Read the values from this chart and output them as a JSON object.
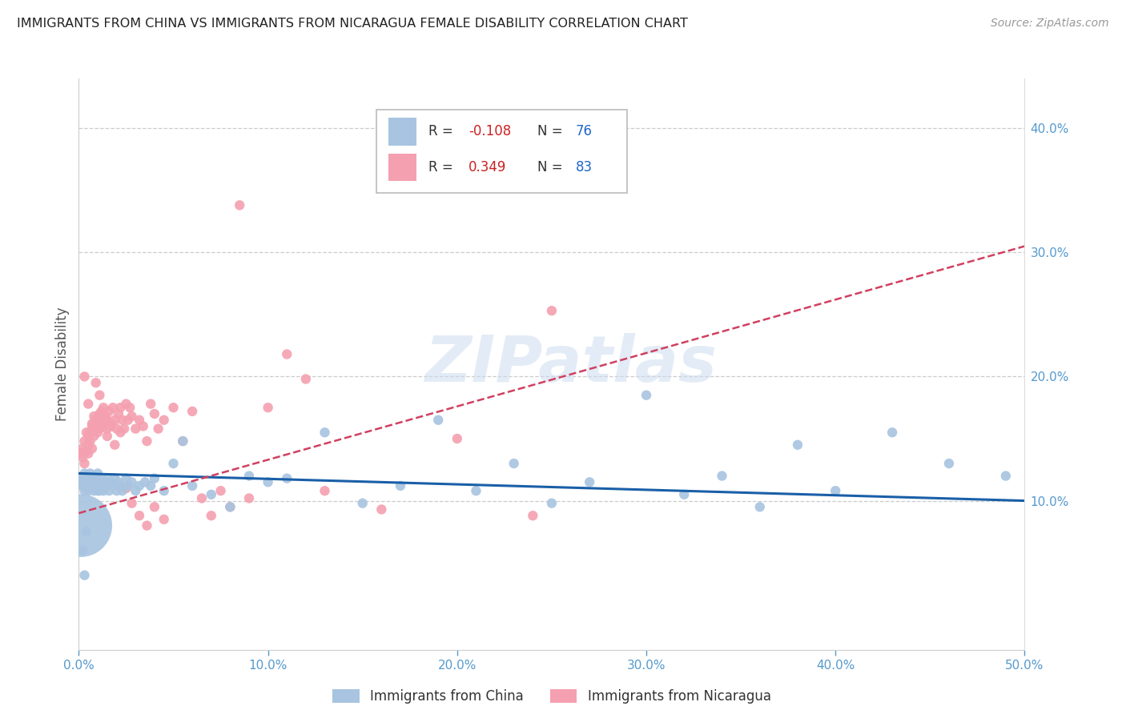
{
  "title": "IMMIGRANTS FROM CHINA VS IMMIGRANTS FROM NICARAGUA FEMALE DISABILITY CORRELATION CHART",
  "source": "Source: ZipAtlas.com",
  "ylabel": "Female Disability",
  "xlim": [
    0.0,
    0.5
  ],
  "ylim": [
    -0.02,
    0.44
  ],
  "plot_ylim": [
    -0.02,
    0.44
  ],
  "ytick_values": [
    0.1,
    0.2,
    0.3,
    0.4
  ],
  "xtick_values": [
    0.0,
    0.1,
    0.2,
    0.3,
    0.4,
    0.5
  ],
  "china_color": "#a8c4e0",
  "nicaragua_color": "#f4a0b0",
  "china_line_color": "#1a5fa8",
  "nicaragua_line_color": "#d04060",
  "china_R": -0.108,
  "china_N": 76,
  "nicaragua_R": 0.349,
  "nicaragua_N": 83,
  "watermark": "ZIPatlas",
  "china_line_x0": 0.0,
  "china_line_x1": 0.5,
  "china_line_y0": 0.122,
  "china_line_y1": 0.1,
  "nicaragua_line_x0": 0.0,
  "nicaragua_line_x1": 0.5,
  "nicaragua_line_y0": 0.09,
  "nicaragua_line_y1": 0.305,
  "china_x": [
    0.001,
    0.002,
    0.002,
    0.003,
    0.003,
    0.004,
    0.004,
    0.005,
    0.005,
    0.005,
    0.006,
    0.006,
    0.007,
    0.007,
    0.008,
    0.008,
    0.009,
    0.009,
    0.01,
    0.01,
    0.01,
    0.011,
    0.011,
    0.012,
    0.012,
    0.013,
    0.013,
    0.014,
    0.015,
    0.015,
    0.016,
    0.017,
    0.018,
    0.019,
    0.02,
    0.021,
    0.022,
    0.023,
    0.025,
    0.026,
    0.028,
    0.03,
    0.032,
    0.035,
    0.038,
    0.04,
    0.045,
    0.05,
    0.055,
    0.06,
    0.07,
    0.08,
    0.09,
    0.1,
    0.11,
    0.13,
    0.15,
    0.17,
    0.19,
    0.21,
    0.23,
    0.25,
    0.27,
    0.3,
    0.32,
    0.34,
    0.36,
    0.38,
    0.4,
    0.43,
    0.46,
    0.49,
    0.002,
    0.003,
    0.004,
    0.001
  ],
  "china_y": [
    0.115,
    0.112,
    0.118,
    0.108,
    0.122,
    0.115,
    0.12,
    0.112,
    0.118,
    0.108,
    0.115,
    0.122,
    0.112,
    0.118,
    0.108,
    0.115,
    0.112,
    0.118,
    0.108,
    0.115,
    0.122,
    0.112,
    0.108,
    0.115,
    0.118,
    0.112,
    0.108,
    0.115,
    0.112,
    0.118,
    0.108,
    0.115,
    0.112,
    0.118,
    0.108,
    0.115,
    0.112,
    0.108,
    0.118,
    0.112,
    0.115,
    0.108,
    0.112,
    0.115,
    0.112,
    0.118,
    0.108,
    0.13,
    0.148,
    0.112,
    0.105,
    0.095,
    0.12,
    0.115,
    0.118,
    0.155,
    0.098,
    0.112,
    0.165,
    0.108,
    0.13,
    0.098,
    0.115,
    0.185,
    0.105,
    0.12,
    0.095,
    0.145,
    0.108,
    0.155,
    0.13,
    0.12,
    0.06,
    0.04,
    0.075,
    0.08
  ],
  "china_size": [
    30,
    20,
    20,
    20,
    20,
    20,
    20,
    20,
    20,
    20,
    20,
    20,
    20,
    20,
    20,
    20,
    20,
    20,
    20,
    20,
    20,
    20,
    20,
    20,
    20,
    20,
    20,
    20,
    20,
    20,
    20,
    20,
    20,
    20,
    20,
    20,
    20,
    20,
    20,
    20,
    20,
    20,
    20,
    20,
    20,
    20,
    20,
    20,
    20,
    20,
    20,
    20,
    20,
    20,
    20,
    20,
    20,
    20,
    20,
    20,
    20,
    20,
    20,
    20,
    20,
    20,
    20,
    20,
    20,
    20,
    20,
    20,
    20,
    20,
    20,
    800
  ],
  "nicaragua_x": [
    0.001,
    0.002,
    0.002,
    0.003,
    0.003,
    0.004,
    0.004,
    0.005,
    0.005,
    0.005,
    0.006,
    0.006,
    0.007,
    0.007,
    0.008,
    0.008,
    0.009,
    0.009,
    0.01,
    0.01,
    0.011,
    0.011,
    0.012,
    0.012,
    0.013,
    0.013,
    0.014,
    0.015,
    0.015,
    0.016,
    0.017,
    0.018,
    0.019,
    0.02,
    0.021,
    0.022,
    0.023,
    0.024,
    0.025,
    0.026,
    0.027,
    0.028,
    0.03,
    0.032,
    0.034,
    0.036,
    0.038,
    0.04,
    0.042,
    0.045,
    0.05,
    0.055,
    0.06,
    0.065,
    0.07,
    0.075,
    0.08,
    0.085,
    0.09,
    0.1,
    0.11,
    0.12,
    0.13,
    0.16,
    0.2,
    0.24,
    0.25,
    0.003,
    0.005,
    0.007,
    0.009,
    0.011,
    0.013,
    0.015,
    0.017,
    0.019,
    0.022,
    0.025,
    0.028,
    0.032,
    0.036,
    0.04,
    0.045
  ],
  "nicaragua_y": [
    0.138,
    0.135,
    0.142,
    0.13,
    0.148,
    0.14,
    0.155,
    0.145,
    0.138,
    0.152,
    0.148,
    0.155,
    0.142,
    0.16,
    0.152,
    0.168,
    0.158,
    0.165,
    0.155,
    0.162,
    0.17,
    0.158,
    0.165,
    0.172,
    0.16,
    0.175,
    0.168,
    0.158,
    0.165,
    0.172,
    0.16,
    0.175,
    0.165,
    0.158,
    0.17,
    0.175,
    0.165,
    0.158,
    0.178,
    0.165,
    0.175,
    0.168,
    0.158,
    0.165,
    0.16,
    0.148,
    0.178,
    0.17,
    0.158,
    0.165,
    0.175,
    0.148,
    0.172,
    0.102,
    0.088,
    0.108,
    0.095,
    0.338,
    0.102,
    0.175,
    0.218,
    0.198,
    0.108,
    0.093,
    0.15,
    0.088,
    0.253,
    0.2,
    0.178,
    0.162,
    0.195,
    0.185,
    0.17,
    0.152,
    0.162,
    0.145,
    0.155,
    0.11,
    0.098,
    0.088,
    0.08,
    0.095,
    0.085
  ],
  "nicaragua_size": [
    20,
    20,
    20,
    20,
    20,
    20,
    20,
    20,
    20,
    20,
    20,
    20,
    20,
    20,
    20,
    20,
    20,
    20,
    20,
    20,
    20,
    20,
    20,
    20,
    20,
    20,
    20,
    20,
    20,
    20,
    20,
    20,
    20,
    20,
    20,
    20,
    20,
    20,
    20,
    20,
    20,
    20,
    20,
    20,
    20,
    20,
    20,
    20,
    20,
    20,
    20,
    20,
    20,
    20,
    20,
    20,
    20,
    20,
    20,
    20,
    20,
    20,
    20,
    20,
    20,
    20,
    20,
    20,
    20,
    20,
    20,
    20,
    20,
    20,
    20,
    20,
    20,
    20,
    20,
    20,
    20,
    20,
    20
  ]
}
